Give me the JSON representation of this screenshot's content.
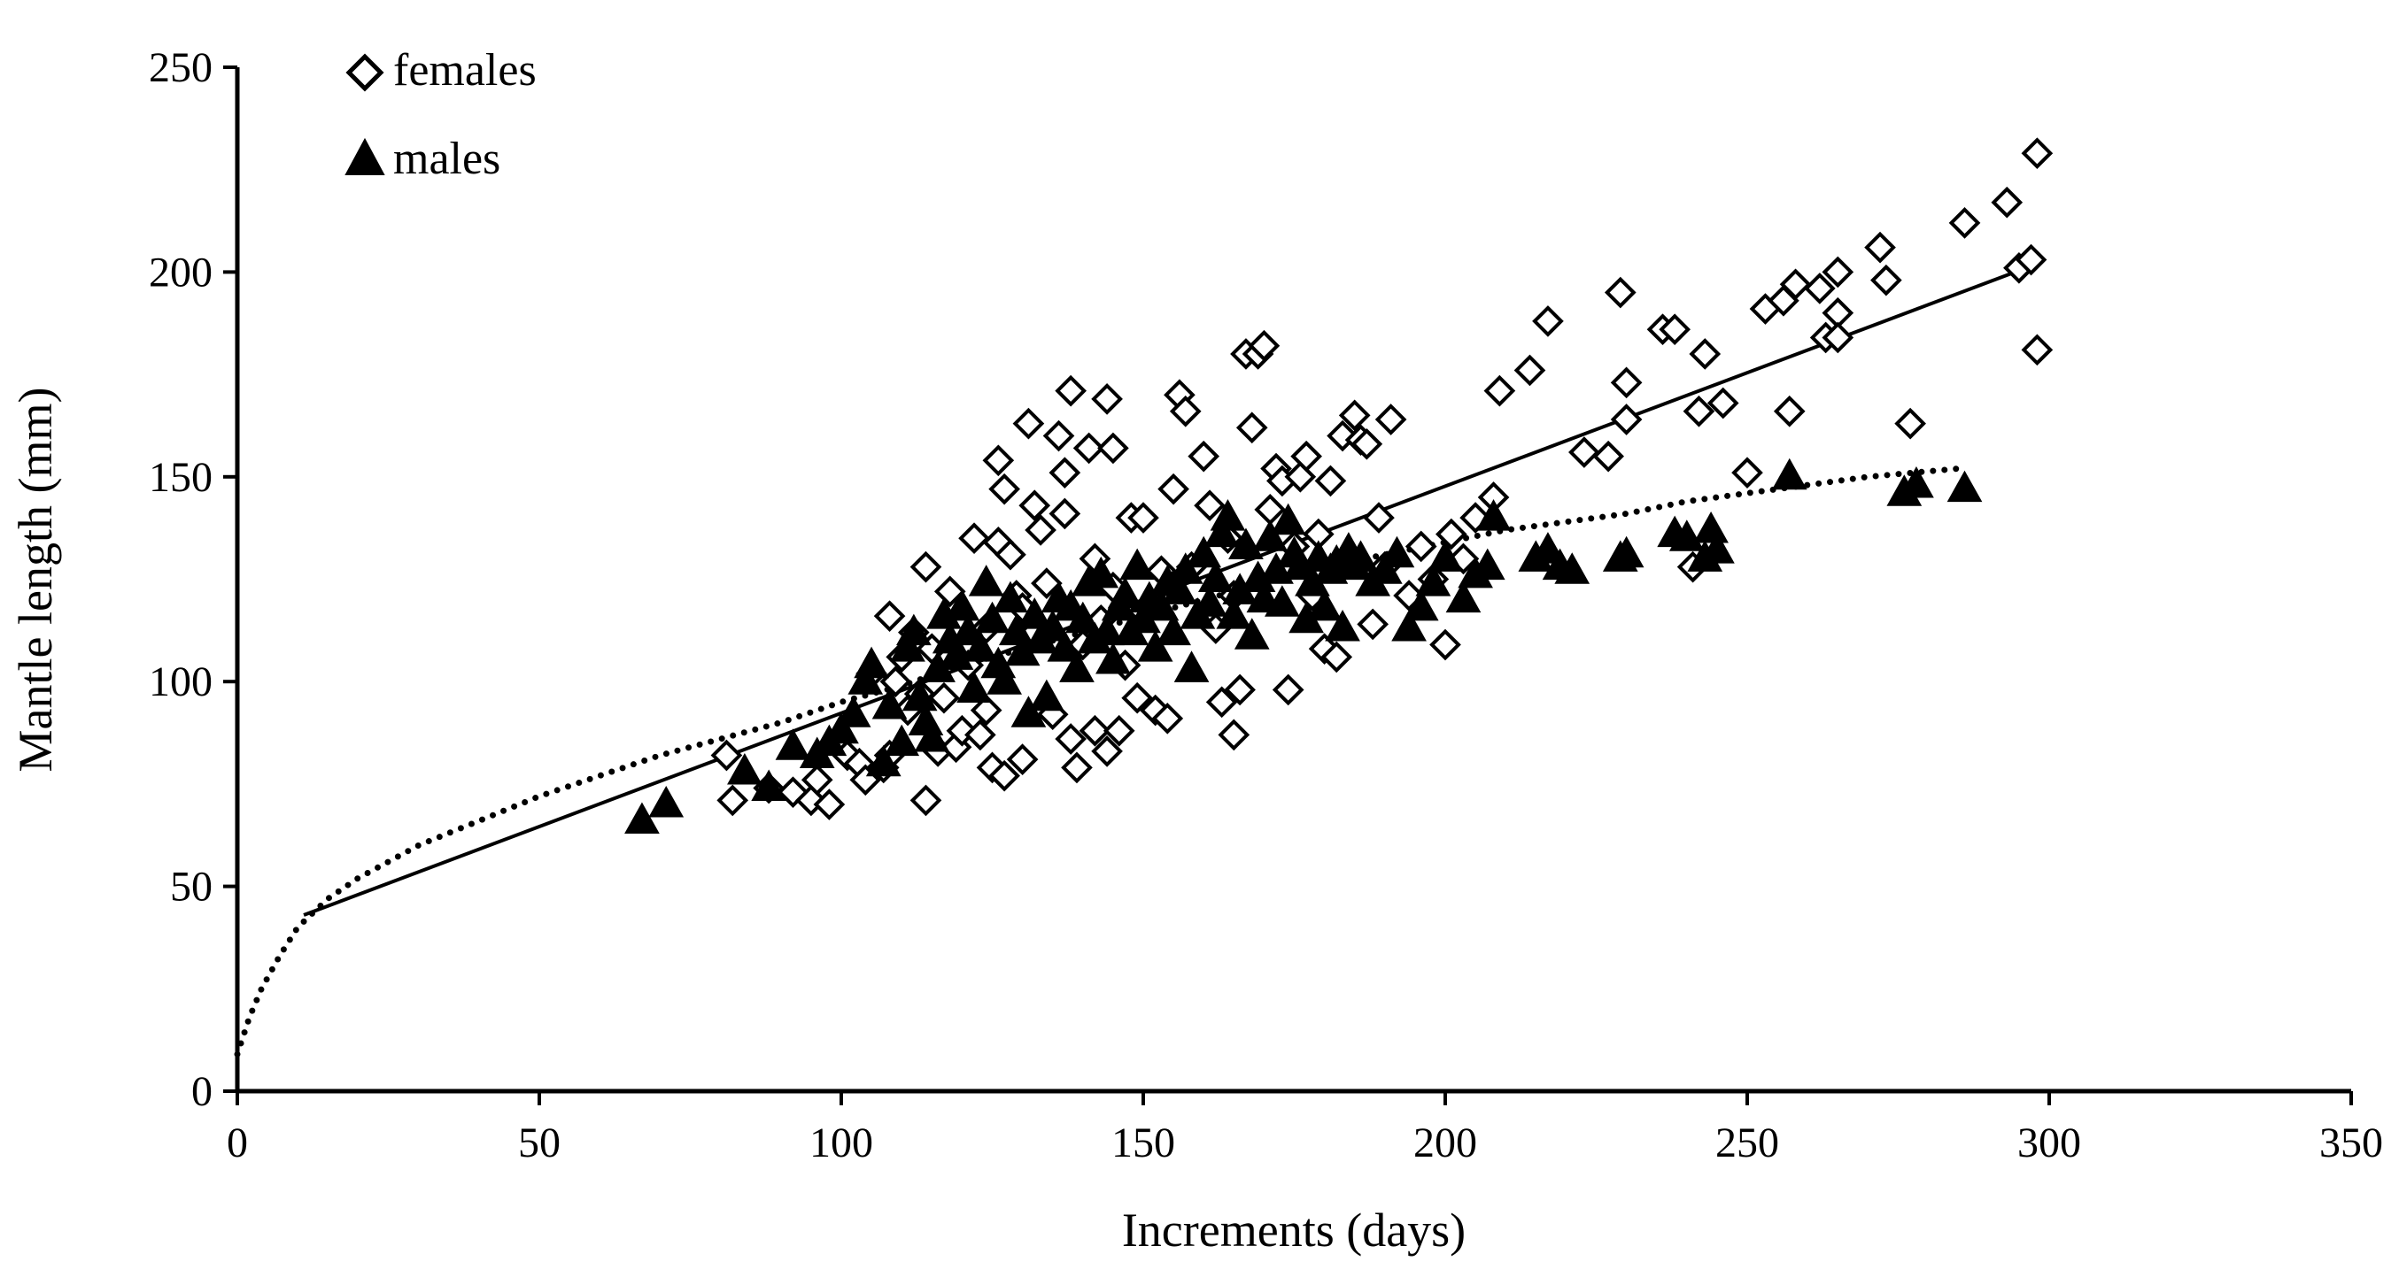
{
  "chart_data": {
    "type": "scatter",
    "xlabel": "Increments  (days)",
    "ylabel": "Mantle length (mm)",
    "xlim": [
      0,
      350
    ],
    "ylim": [
      0,
      250
    ],
    "x_ticks": [
      "0",
      "50",
      "100",
      "150",
      "200",
      "250",
      "300",
      "350"
    ],
    "y_ticks": [
      "0",
      "50",
      "100",
      "150",
      "200",
      "250"
    ],
    "grid": false,
    "legend": {
      "placement": "top-left",
      "entries": [
        "females",
        "males"
      ]
    },
    "colors": {
      "axis": "#000000",
      "marker": "#000000",
      "background": "#ffffff"
    },
    "series": [
      {
        "name": "females",
        "marker": "open-diamond",
        "points": [
          [
            81,
            82
          ],
          [
            82,
            71
          ],
          [
            88,
            74
          ],
          [
            92,
            73
          ],
          [
            95,
            71
          ],
          [
            96,
            76
          ],
          [
            98,
            70
          ],
          [
            101,
            82
          ],
          [
            103,
            80
          ],
          [
            104,
            76
          ],
          [
            105,
            102
          ],
          [
            107,
            79
          ],
          [
            108,
            82
          ],
          [
            108,
            116
          ],
          [
            109,
            100
          ],
          [
            110,
            106
          ],
          [
            111,
            93
          ],
          [
            112,
            112
          ],
          [
            113,
            97
          ],
          [
            114,
            71
          ],
          [
            114,
            128
          ],
          [
            115,
            108
          ],
          [
            116,
            83
          ],
          [
            117,
            96
          ],
          [
            118,
            122
          ],
          [
            119,
            84
          ],
          [
            120,
            88
          ],
          [
            121,
            104
          ],
          [
            122,
            135
          ],
          [
            123,
            87
          ],
          [
            124,
            93
          ],
          [
            124,
            113
          ],
          [
            125,
            79
          ],
          [
            126,
            154
          ],
          [
            126,
            134
          ],
          [
            127,
            147
          ],
          [
            127,
            77
          ],
          [
            128,
            131
          ],
          [
            129,
            121
          ],
          [
            130,
            81
          ],
          [
            130,
            118
          ],
          [
            131,
            163
          ],
          [
            132,
            143
          ],
          [
            132,
            112
          ],
          [
            133,
            137
          ],
          [
            134,
            124
          ],
          [
            135,
            92
          ],
          [
            136,
            160
          ],
          [
            137,
            151
          ],
          [
            137,
            141
          ],
          [
            138,
            171
          ],
          [
            138,
            86
          ],
          [
            139,
            79
          ],
          [
            140,
            109
          ],
          [
            141,
            157
          ],
          [
            142,
            88
          ],
          [
            142,
            130
          ],
          [
            143,
            115
          ],
          [
            144,
            83
          ],
          [
            144,
            169
          ],
          [
            145,
            157
          ],
          [
            145,
            123
          ],
          [
            146,
            88
          ],
          [
            147,
            104
          ],
          [
            148,
            140
          ],
          [
            149,
            96
          ],
          [
            150,
            140
          ],
          [
            150,
            117
          ],
          [
            152,
            93
          ],
          [
            153,
            127
          ],
          [
            154,
            91
          ],
          [
            155,
            147
          ],
          [
            156,
            170
          ],
          [
            157,
            166
          ],
          [
            158,
            128
          ],
          [
            160,
            155
          ],
          [
            161,
            143
          ],
          [
            162,
            113
          ],
          [
            163,
            95
          ],
          [
            164,
            135
          ],
          [
            165,
            87
          ],
          [
            165,
            121
          ],
          [
            166,
            98
          ],
          [
            167,
            180
          ],
          [
            168,
            162
          ],
          [
            169,
            180
          ],
          [
            170,
            182
          ],
          [
            171,
            142
          ],
          [
            172,
            152
          ],
          [
            173,
            149
          ],
          [
            174,
            98
          ],
          [
            175,
            133
          ],
          [
            176,
            150
          ],
          [
            177,
            155
          ],
          [
            178,
            121
          ],
          [
            179,
            136
          ],
          [
            180,
            108
          ],
          [
            181,
            149
          ],
          [
            182,
            106
          ],
          [
            183,
            160
          ],
          [
            185,
            165
          ],
          [
            186,
            159
          ],
          [
            187,
            158
          ],
          [
            188,
            114
          ],
          [
            189,
            140
          ],
          [
            190,
            128
          ],
          [
            191,
            164
          ],
          [
            194,
            121
          ],
          [
            196,
            133
          ],
          [
            198,
            125
          ],
          [
            200,
            109
          ],
          [
            201,
            136
          ],
          [
            203,
            130
          ],
          [
            205,
            140
          ],
          [
            208,
            145
          ],
          [
            209,
            171
          ],
          [
            214,
            176
          ],
          [
            217,
            188
          ],
          [
            223,
            156
          ],
          [
            227,
            155
          ],
          [
            229,
            195
          ],
          [
            230,
            164
          ],
          [
            230,
            173
          ],
          [
            236,
            186
          ],
          [
            238,
            186
          ],
          [
            241,
            128
          ],
          [
            242,
            166
          ],
          [
            243,
            180
          ],
          [
            246,
            168
          ],
          [
            250,
            151
          ],
          [
            253,
            191
          ],
          [
            256,
            193
          ],
          [
            257,
            166
          ],
          [
            258,
            197
          ],
          [
            262,
            196
          ],
          [
            263,
            184
          ],
          [
            265,
            190
          ],
          [
            265,
            184
          ],
          [
            265,
            200
          ],
          [
            272,
            206
          ],
          [
            273,
            198
          ],
          [
            277,
            163
          ],
          [
            286,
            212
          ],
          [
            293,
            217
          ],
          [
            295,
            201
          ],
          [
            297,
            203
          ],
          [
            298,
            229
          ],
          [
            298,
            181
          ]
        ]
      },
      {
        "name": "males",
        "marker": "filled-triangle",
        "points": [
          [
            67,
            66
          ],
          [
            71,
            70
          ],
          [
            84,
            78
          ],
          [
            88,
            74
          ],
          [
            92,
            84
          ],
          [
            96,
            82
          ],
          [
            98,
            85
          ],
          [
            100,
            88
          ],
          [
            102,
            92
          ],
          [
            104,
            100
          ],
          [
            105,
            104
          ],
          [
            107,
            80
          ],
          [
            108,
            94
          ],
          [
            110,
            85
          ],
          [
            111,
            108
          ],
          [
            112,
            112
          ],
          [
            113,
            96
          ],
          [
            114,
            90
          ],
          [
            115,
            86
          ],
          [
            116,
            103
          ],
          [
            117,
            116
          ],
          [
            118,
            110
          ],
          [
            119,
            106
          ],
          [
            120,
            118
          ],
          [
            121,
            112
          ],
          [
            122,
            98
          ],
          [
            123,
            108
          ],
          [
            124,
            124
          ],
          [
            125,
            115
          ],
          [
            126,
            104
          ],
          [
            127,
            100
          ],
          [
            128,
            120
          ],
          [
            129,
            112
          ],
          [
            130,
            107
          ],
          [
            131,
            92
          ],
          [
            132,
            116
          ],
          [
            133,
            110
          ],
          [
            134,
            96
          ],
          [
            135,
            113
          ],
          [
            136,
            120
          ],
          [
            137,
            108
          ],
          [
            138,
            118
          ],
          [
            139,
            103
          ],
          [
            140,
            115
          ],
          [
            141,
            124
          ],
          [
            142,
            110
          ],
          [
            143,
            126
          ],
          [
            144,
            112
          ],
          [
            145,
            105
          ],
          [
            146,
            118
          ],
          [
            147,
            121
          ],
          [
            148,
            112
          ],
          [
            149,
            128
          ],
          [
            150,
            115
          ],
          [
            151,
            120
          ],
          [
            152,
            108
          ],
          [
            153,
            118
          ],
          [
            154,
            124
          ],
          [
            155,
            112
          ],
          [
            156,
            122
          ],
          [
            157,
            127
          ],
          [
            158,
            103
          ],
          [
            159,
            116
          ],
          [
            160,
            131
          ],
          [
            161,
            119
          ],
          [
            162,
            125
          ],
          [
            163,
            136
          ],
          [
            164,
            140
          ],
          [
            165,
            116
          ],
          [
            166,
            122
          ],
          [
            167,
            133
          ],
          [
            168,
            111
          ],
          [
            169,
            125
          ],
          [
            170,
            120
          ],
          [
            171,
            135
          ],
          [
            172,
            127
          ],
          [
            173,
            119
          ],
          [
            174,
            139
          ],
          [
            175,
            131
          ],
          [
            176,
            128
          ],
          [
            177,
            115
          ],
          [
            178,
            124
          ],
          [
            179,
            130
          ],
          [
            180,
            118
          ],
          [
            181,
            127
          ],
          [
            182,
            129
          ],
          [
            183,
            113
          ],
          [
            184,
            132
          ],
          [
            185,
            128
          ],
          [
            186,
            130
          ],
          [
            188,
            124
          ],
          [
            190,
            127
          ],
          [
            192,
            131
          ],
          [
            194,
            113
          ],
          [
            196,
            118
          ],
          [
            198,
            124
          ],
          [
            200,
            130
          ],
          [
            203,
            120
          ],
          [
            205,
            126
          ],
          [
            207,
            128
          ],
          [
            208,
            140
          ],
          [
            215,
            130
          ],
          [
            217,
            132
          ],
          [
            219,
            128
          ],
          [
            221,
            127
          ],
          [
            229,
            130
          ],
          [
            230,
            131
          ],
          [
            238,
            136
          ],
          [
            240,
            135
          ],
          [
            243,
            130
          ],
          [
            244,
            137
          ],
          [
            245,
            132
          ],
          [
            257,
            150
          ],
          [
            276,
            146
          ],
          [
            278,
            148
          ],
          [
            286,
            147
          ]
        ]
      }
    ],
    "trendlines": [
      {
        "name": "females",
        "style": "solid",
        "form": "linear",
        "x_range": [
          11,
          298
        ],
        "y_at_ends": [
          43,
          202
        ]
      },
      {
        "name": "males",
        "style": "dotted",
        "form": "curve",
        "x_range": [
          0,
          285
        ],
        "points": [
          [
            0,
            9
          ],
          [
            2,
            18
          ],
          [
            4,
            25
          ],
          [
            7,
            33
          ],
          [
            10,
            40
          ],
          [
            15,
            47
          ],
          [
            20,
            52
          ],
          [
            30,
            60
          ],
          [
            40,
            66
          ],
          [
            50,
            72
          ],
          [
            60,
            77
          ],
          [
            70,
            82
          ],
          [
            80,
            86
          ],
          [
            90,
            90
          ],
          [
            100,
            95
          ],
          [
            110,
            99
          ],
          [
            120,
            104
          ],
          [
            130,
            108
          ],
          [
            140,
            112
          ],
          [
            150,
            116
          ],
          [
            160,
            120
          ],
          [
            170,
            124
          ],
          [
            180,
            128
          ],
          [
            190,
            131
          ],
          [
            200,
            134
          ],
          [
            210,
            137
          ],
          [
            220,
            139
          ],
          [
            230,
            141
          ],
          [
            240,
            144
          ],
          [
            250,
            146
          ],
          [
            260,
            148
          ],
          [
            270,
            150
          ],
          [
            285,
            152
          ]
        ]
      }
    ]
  }
}
